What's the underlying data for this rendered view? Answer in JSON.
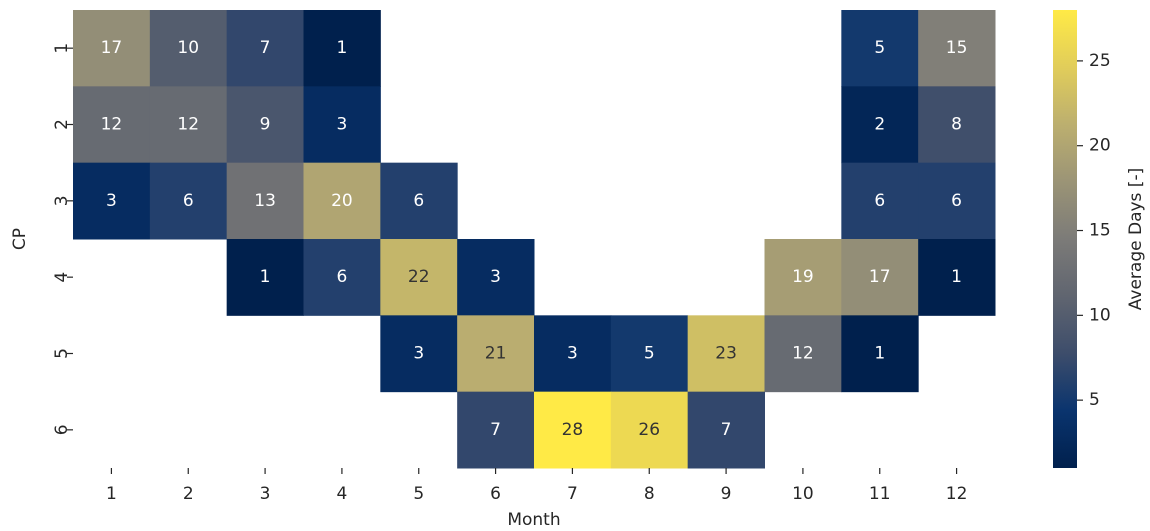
{
  "chart_data": {
    "type": "heatmap",
    "x_label": "Month",
    "y_label": "CP",
    "x_categories": [
      "1",
      "2",
      "3",
      "4",
      "5",
      "6",
      "7",
      "8",
      "9",
      "10",
      "11",
      "12"
    ],
    "y_categories": [
      "1",
      "2",
      "3",
      "4",
      "5",
      "6"
    ],
    "values": [
      [
        17,
        10,
        7,
        1,
        null,
        null,
        null,
        null,
        null,
        null,
        5,
        15
      ],
      [
        12,
        12,
        9,
        3,
        null,
        null,
        null,
        null,
        null,
        null,
        2,
        8
      ],
      [
        3,
        6,
        13,
        20,
        6,
        null,
        null,
        null,
        null,
        null,
        6,
        6
      ],
      [
        null,
        null,
        1,
        6,
        22,
        3,
        null,
        null,
        null,
        19,
        17,
        1
      ],
      [
        null,
        null,
        null,
        null,
        3,
        21,
        3,
        5,
        23,
        12,
        1,
        null
      ],
      [
        null,
        null,
        null,
        null,
        null,
        7,
        28,
        26,
        7,
        null,
        null,
        null
      ]
    ],
    "colormap": "cividis",
    "colorbar": {
      "label": "Average Days [-]",
      "clim": [
        1,
        28
      ],
      "ticks": [
        5,
        10,
        15,
        20,
        25
      ]
    }
  }
}
